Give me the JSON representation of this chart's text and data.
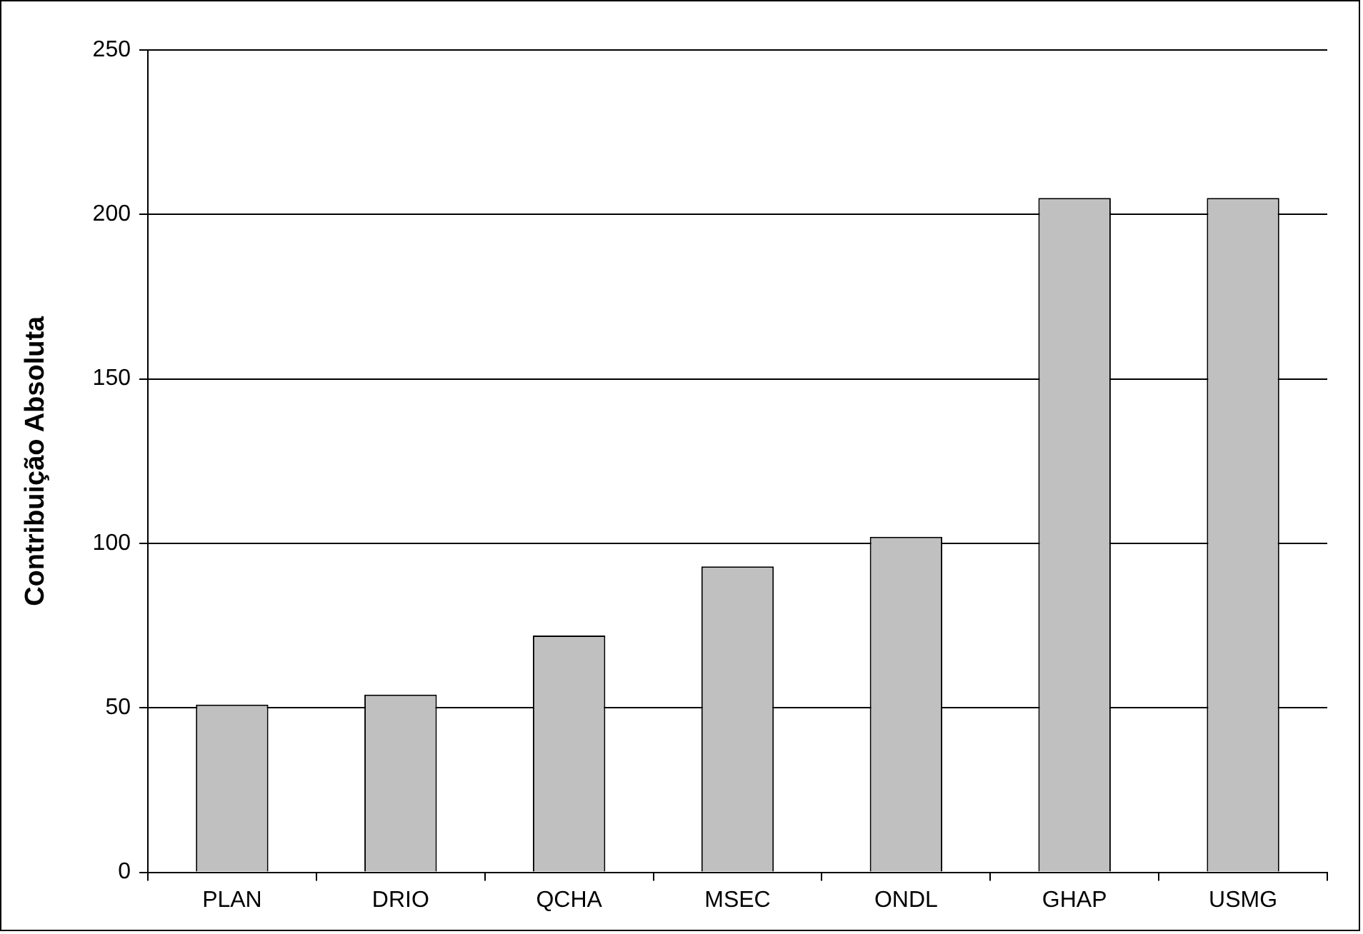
{
  "chart_data": {
    "type": "bar",
    "ylabel": "Contribuição Absoluta",
    "categories": [
      "PLAN",
      "DRIO",
      "QCHA",
      "MSEC",
      "ONDL",
      "GHAP",
      "USMG"
    ],
    "values": [
      51,
      54,
      72,
      93,
      102,
      205,
      205
    ],
    "color": "#c0c0c0",
    "ylim": [
      0,
      250
    ],
    "yticks": [
      0,
      50,
      100,
      150,
      200,
      250
    ],
    "grid": "y",
    "legend": false
  }
}
